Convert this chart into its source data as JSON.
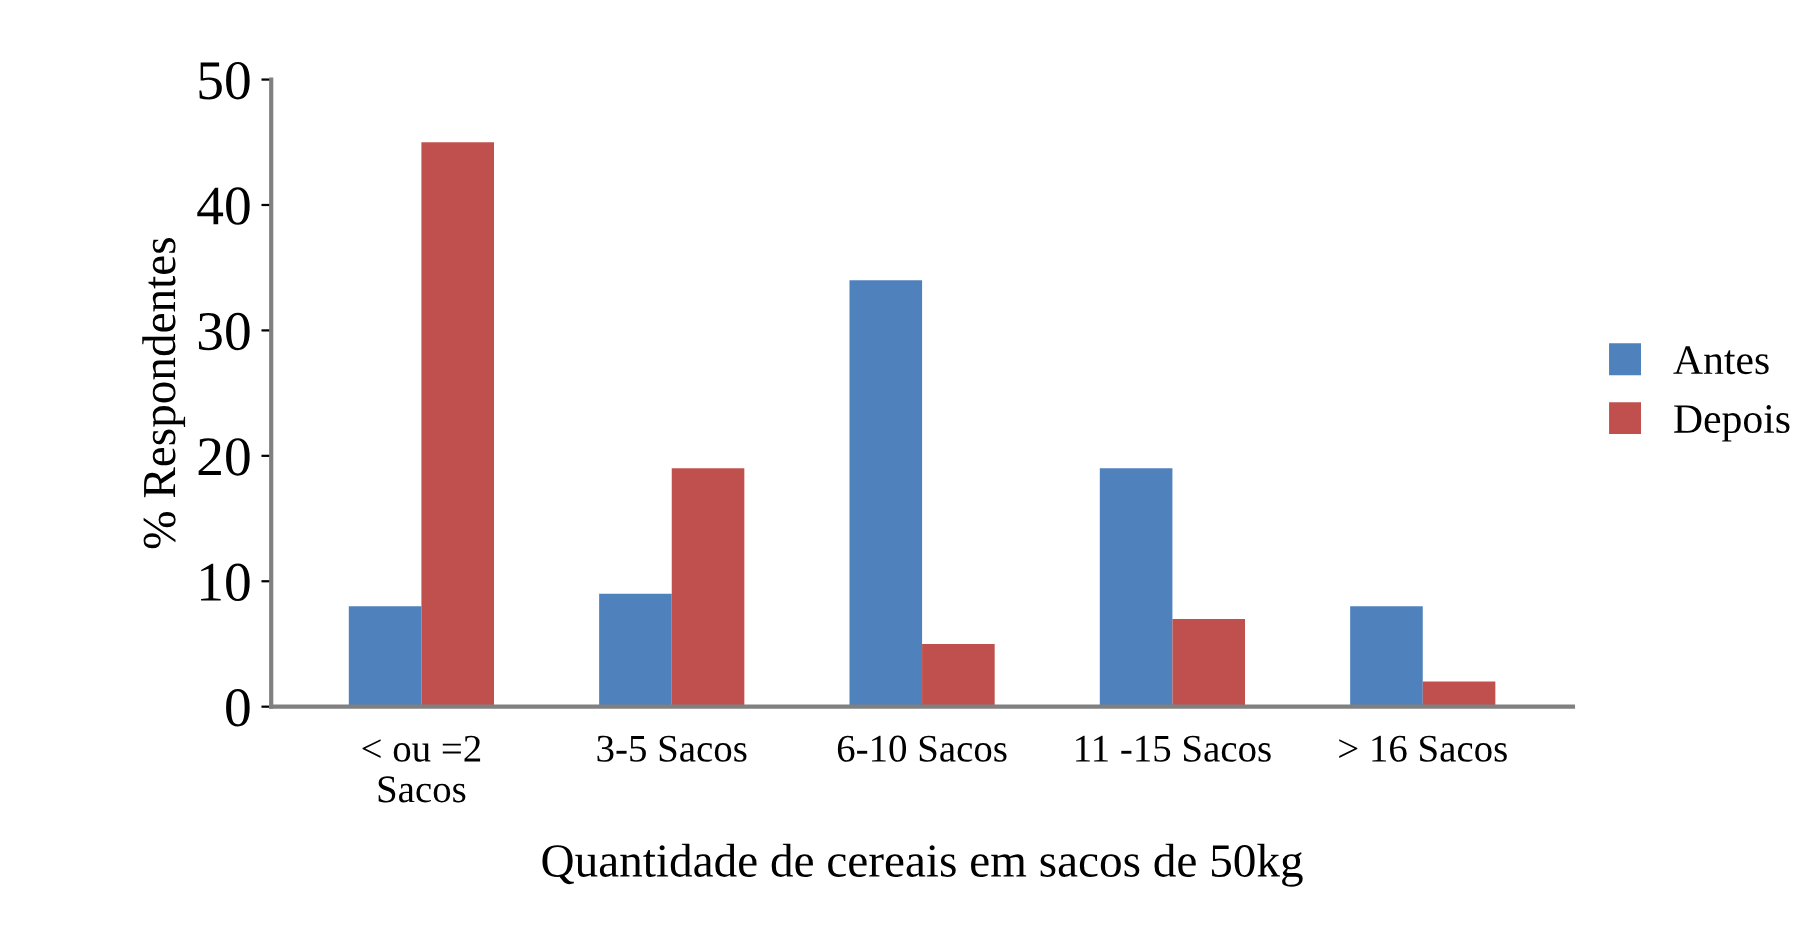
{
  "chart_data": {
    "type": "bar",
    "xlabel": "Quantidade de cereais em sacos de 50kg",
    "ylabel": "% Respondentes",
    "categories": [
      "< ou =2\nSacos",
      "3-5 Sacos",
      "6-10 Sacos",
      "11 -15 Sacos",
      "> 16 Sacos"
    ],
    "series": [
      {
        "name": "Antes",
        "color": "#4f81bd",
        "values": [
          8,
          9,
          34,
          19,
          8
        ]
      },
      {
        "name": "Depois",
        "color": "#c0504d",
        "values": [
          45,
          19,
          5,
          7,
          2
        ]
      }
    ],
    "ylim": [
      0,
      50
    ],
    "yticks": [
      0,
      10,
      20,
      30,
      40,
      50
    ],
    "legend": "right",
    "grid": false
  }
}
